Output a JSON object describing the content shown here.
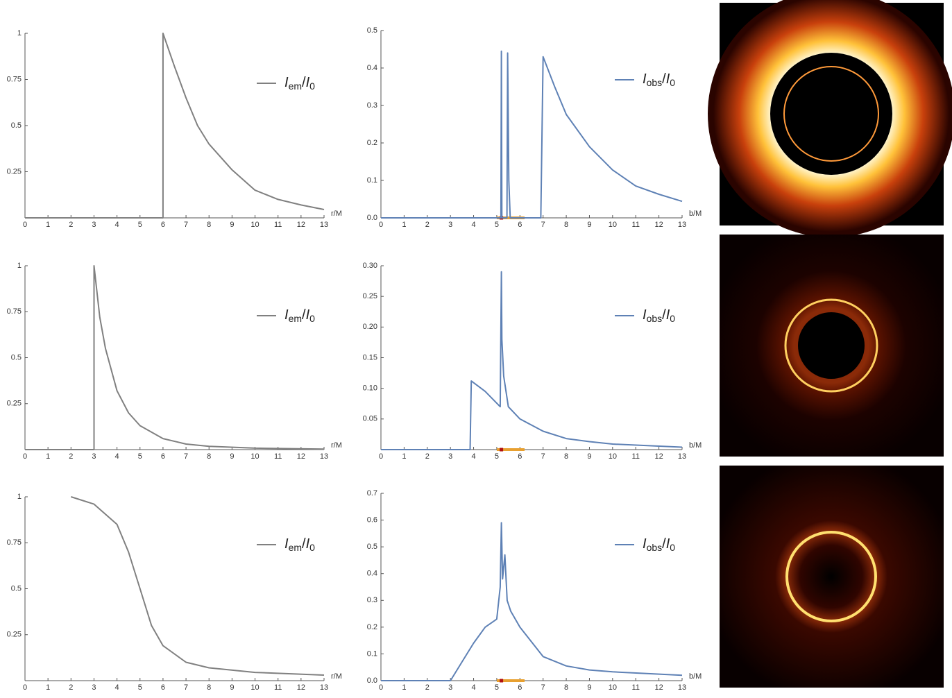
{
  "chart_data": [
    {
      "type": "line",
      "xlabel": "r/M",
      "xlim": [
        0,
        13
      ],
      "ylim": [
        0,
        1
      ],
      "xticks": [
        0,
        1,
        2,
        3,
        4,
        5,
        6,
        7,
        8,
        9,
        10,
        11,
        12,
        13
      ],
      "yticks": [
        0.25,
        0.5,
        0.75,
        1
      ],
      "x": [
        0,
        6,
        6,
        6.5,
        7,
        7.5,
        8,
        9,
        10,
        11,
        12,
        13
      ],
      "series": [
        {
          "name": "Iem/I0",
          "color": "#808080",
          "values": [
            0,
            0,
            1,
            0.82,
            0.65,
            0.5,
            0.4,
            0.26,
            0.15,
            0.1,
            0.07,
            0.045
          ]
        }
      ]
    },
    {
      "type": "line",
      "xlabel": "b/M",
      "xlim": [
        0,
        13
      ],
      "ylim": [
        0,
        0.5
      ],
      "xticks": [
        0,
        1,
        2,
        3,
        4,
        5,
        6,
        7,
        8,
        9,
        10,
        11,
        12,
        13
      ],
      "yticks": [
        {
          "value": 0,
          "label": "0.0"
        },
        0.1,
        0.2,
        0.3,
        0.4,
        0.5
      ],
      "xband": [
        5.0,
        6.2
      ],
      "xpoint": 5.2,
      "x": [
        0,
        5.18,
        5.2,
        5.22,
        5.44,
        5.47,
        5.52,
        5.58,
        6.9,
        7.0,
        7.5,
        8,
        9,
        10,
        11,
        12,
        13
      ],
      "series": [
        {
          "name": "Iobs/I0",
          "color": "#5e81b5",
          "values": [
            0,
            0,
            0.445,
            0,
            0,
            0.44,
            0.1,
            0,
            0,
            0.43,
            0.35,
            0.276,
            0.19,
            0.128,
            0.085,
            0.063,
            0.044
          ]
        }
      ]
    },
    {
      "type": "line",
      "xlabel": "r/M",
      "xlim": [
        0,
        13
      ],
      "ylim": [
        0,
        1
      ],
      "xticks": [
        0,
        1,
        2,
        3,
        4,
        5,
        6,
        7,
        8,
        9,
        10,
        11,
        12,
        13
      ],
      "yticks": [
        0.25,
        0.5,
        0.75,
        1
      ],
      "x": [
        0,
        3,
        3,
        3.25,
        3.5,
        4,
        4.5,
        5,
        6,
        7,
        8,
        10,
        13
      ],
      "series": [
        {
          "name": "Iem/I0",
          "color": "#808080",
          "values": [
            0,
            0,
            1,
            0.72,
            0.55,
            0.32,
            0.2,
            0.13,
            0.06,
            0.03,
            0.018,
            0.008,
            0.003
          ]
        }
      ]
    },
    {
      "type": "line",
      "xlabel": "b/M",
      "xlim": [
        0,
        13
      ],
      "ylim": [
        0,
        0.3
      ],
      "xticks": [
        0,
        1,
        2,
        3,
        4,
        5,
        6,
        7,
        8,
        9,
        10,
        11,
        12,
        13
      ],
      "yticks": [
        0.05,
        {
          "value": 0.1,
          "label": "0.10"
        },
        0.15,
        {
          "value": 0.2,
          "label": "0.20"
        },
        0.25,
        {
          "value": 0.3,
          "label": "0.30"
        }
      ],
      "xband": [
        5.0,
        6.2
      ],
      "xpoint": 5.2,
      "x": [
        0,
        3.85,
        3.9,
        4.5,
        5.15,
        5.2,
        5.22,
        5.3,
        5.5,
        6,
        7,
        8,
        9,
        10,
        13
      ],
      "series": [
        {
          "name": "Iobs/I0",
          "color": "#5e81b5",
          "values": [
            0,
            0,
            0.112,
            0.095,
            0.07,
            0.29,
            0.18,
            0.12,
            0.07,
            0.05,
            0.03,
            0.018,
            0.013,
            0.009,
            0.004
          ]
        }
      ]
    },
    {
      "type": "line",
      "xlabel": "r/M",
      "xlim": [
        0,
        13
      ],
      "ylim": [
        0,
        1
      ],
      "xticks": [
        0,
        1,
        2,
        3,
        4,
        5,
        6,
        7,
        8,
        9,
        10,
        11,
        12,
        13
      ],
      "yticks": [
        0.25,
        0.5,
        0.75,
        1
      ],
      "x": [
        2,
        3,
        4,
        4.5,
        5,
        5.5,
        6,
        7,
        8,
        10,
        13
      ],
      "series": [
        {
          "name": "Iem/I0",
          "color": "#808080",
          "values": [
            1,
            0.96,
            0.85,
            0.7,
            0.5,
            0.3,
            0.19,
            0.1,
            0.07,
            0.045,
            0.03
          ]
        }
      ]
    },
    {
      "type": "line",
      "xlabel": "b/M",
      "xlim": [
        0,
        13
      ],
      "ylim": [
        0,
        0.7
      ],
      "xticks": [
        0,
        1,
        2,
        3,
        4,
        5,
        6,
        7,
        8,
        9,
        10,
        11,
        12,
        13
      ],
      "yticks": [
        {
          "value": 0,
          "label": "0.0"
        },
        0.1,
        0.2,
        0.3,
        0.4,
        0.5,
        0.6,
        0.7
      ],
      "xband": [
        5.0,
        6.2
      ],
      "xpoint": 5.2,
      "x": [
        0,
        3,
        3.5,
        4,
        4.5,
        5,
        5.15,
        5.2,
        5.25,
        5.35,
        5.45,
        5.6,
        6,
        7,
        8,
        9,
        10,
        13
      ],
      "series": [
        {
          "name": "Iobs/I0",
          "color": "#5e81b5",
          "values": [
            0,
            0,
            0.07,
            0.14,
            0.2,
            0.23,
            0.35,
            0.59,
            0.38,
            0.47,
            0.3,
            0.26,
            0.2,
            0.09,
            0.055,
            0.04,
            0.033,
            0.02
          ]
        }
      ]
    }
  ]
}
